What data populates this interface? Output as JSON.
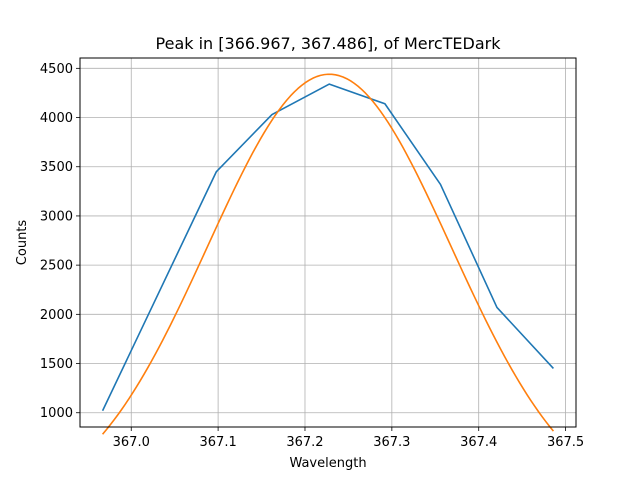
{
  "chart_data": {
    "type": "line",
    "title": "Peak in [366.967, 367.486], of MercTEDark",
    "xlabel": "Wavelength",
    "ylabel": "Counts",
    "xlim": [
      366.941,
      367.512
    ],
    "ylim": [
      855,
      4605
    ],
    "grid": true,
    "x_ticks": [
      {
        "value": 367.0,
        "label": "367.0"
      },
      {
        "value": 367.1,
        "label": "367.1"
      },
      {
        "value": 367.2,
        "label": "367.2"
      },
      {
        "value": 367.3,
        "label": "367.3"
      },
      {
        "value": 367.4,
        "label": "367.4"
      },
      {
        "value": 367.5,
        "label": "367.5"
      }
    ],
    "y_ticks": [
      {
        "value": 1000,
        "label": "1000"
      },
      {
        "value": 1500,
        "label": "1500"
      },
      {
        "value": 2000,
        "label": "2000"
      },
      {
        "value": 2500,
        "label": "2500"
      },
      {
        "value": 3000,
        "label": "3000"
      },
      {
        "value": 3500,
        "label": "3500"
      },
      {
        "value": 4000,
        "label": "4000"
      },
      {
        "value": 4500,
        "label": "4500"
      }
    ],
    "series": [
      {
        "color": "#1f77b4",
        "kind": "data",
        "points": [
          [
            366.967,
            1020
          ],
          [
            367.098,
            3450
          ],
          [
            367.162,
            4030
          ],
          [
            367.228,
            4340
          ],
          [
            367.292,
            4140
          ],
          [
            367.356,
            3320
          ],
          [
            367.421,
            2070
          ],
          [
            367.486,
            1450
          ]
        ]
      },
      {
        "color": "#ff7f0e",
        "kind": "fit",
        "gaussian": {
          "amplitude": 4440,
          "center": 367.228,
          "sigma": 0.14,
          "offset": 0,
          "x_from": 366.967,
          "x_to": 367.486
        }
      }
    ]
  }
}
